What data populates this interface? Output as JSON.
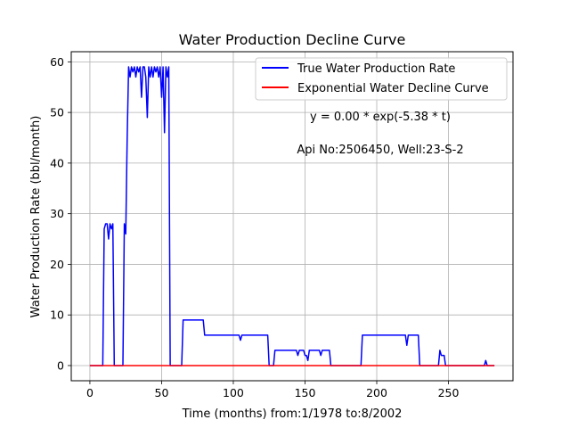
{
  "chart_data": {
    "type": "line",
    "title": "Water Production Decline Curve",
    "xlabel": "Time (months) from:1/1978 to:8/2002",
    "ylabel": "Water Production Rate (bbl/month)",
    "xlim": [
      -13,
      295
    ],
    "ylim": [
      -3,
      62
    ],
    "xticks": [
      0,
      50,
      100,
      150,
      200,
      250
    ],
    "yticks": [
      0,
      10,
      20,
      30,
      40,
      50,
      60
    ],
    "grid": true,
    "legend_position": "top-right",
    "annotations": [
      "y = 0.00 * exp(-5.38 * t)",
      "Api No:2506450, Well:23-S-2"
    ],
    "series": [
      {
        "name": "True Water Production Rate",
        "color": "#0000ff",
        "points": [
          [
            0,
            0
          ],
          [
            9,
            0
          ],
          [
            10,
            27
          ],
          [
            11,
            28
          ],
          [
            12,
            28
          ],
          [
            13,
            25
          ],
          [
            14,
            28
          ],
          [
            15,
            27
          ],
          [
            16,
            28
          ],
          [
            17,
            0
          ],
          [
            23,
            0
          ],
          [
            24,
            28
          ],
          [
            25,
            26
          ],
          [
            26,
            45
          ],
          [
            27,
            59
          ],
          [
            28,
            57
          ],
          [
            29,
            59
          ],
          [
            30,
            58
          ],
          [
            31,
            59
          ],
          [
            32,
            57
          ],
          [
            33,
            59
          ],
          [
            34,
            58
          ],
          [
            35,
            59
          ],
          [
            36,
            53
          ],
          [
            37,
            59
          ],
          [
            38,
            59
          ],
          [
            39,
            57
          ],
          [
            40,
            49
          ],
          [
            41,
            59
          ],
          [
            42,
            57
          ],
          [
            43,
            59
          ],
          [
            44,
            57
          ],
          [
            45,
            59
          ],
          [
            46,
            58
          ],
          [
            47,
            59
          ],
          [
            48,
            57
          ],
          [
            49,
            59
          ],
          [
            50,
            53
          ],
          [
            51,
            59
          ],
          [
            52,
            46
          ],
          [
            53,
            59
          ],
          [
            54,
            57
          ],
          [
            55,
            59
          ],
          [
            56,
            0
          ],
          [
            64,
            0
          ],
          [
            65,
            9
          ],
          [
            79,
            9
          ],
          [
            80,
            6
          ],
          [
            104,
            6
          ],
          [
            105,
            5
          ],
          [
            106,
            6
          ],
          [
            124,
            6
          ],
          [
            125,
            0
          ],
          [
            128,
            0
          ],
          [
            129,
            3
          ],
          [
            144,
            3
          ],
          [
            145,
            2
          ],
          [
            146,
            3
          ],
          [
            149,
            3
          ],
          [
            150,
            2
          ],
          [
            151,
            2
          ],
          [
            152,
            1
          ],
          [
            153,
            3
          ],
          [
            155,
            3
          ],
          [
            160,
            3
          ],
          [
            161,
            2
          ],
          [
            162,
            3
          ],
          [
            167,
            3
          ],
          [
            168,
            0
          ],
          [
            189,
            0
          ],
          [
            190,
            6
          ],
          [
            220,
            6
          ],
          [
            221,
            4
          ],
          [
            222,
            6
          ],
          [
            229,
            6
          ],
          [
            230,
            0
          ],
          [
            243,
            0
          ],
          [
            244,
            3
          ],
          [
            245,
            2
          ],
          [
            247,
            2
          ],
          [
            248,
            0
          ],
          [
            275,
            0
          ],
          [
            276,
            1
          ],
          [
            277,
            0
          ],
          [
            282,
            0
          ]
        ]
      },
      {
        "name": "Exponential Water Decline Curve",
        "color": "#ff0000",
        "points": [
          [
            0,
            0
          ],
          [
            282,
            0
          ]
        ]
      }
    ]
  }
}
